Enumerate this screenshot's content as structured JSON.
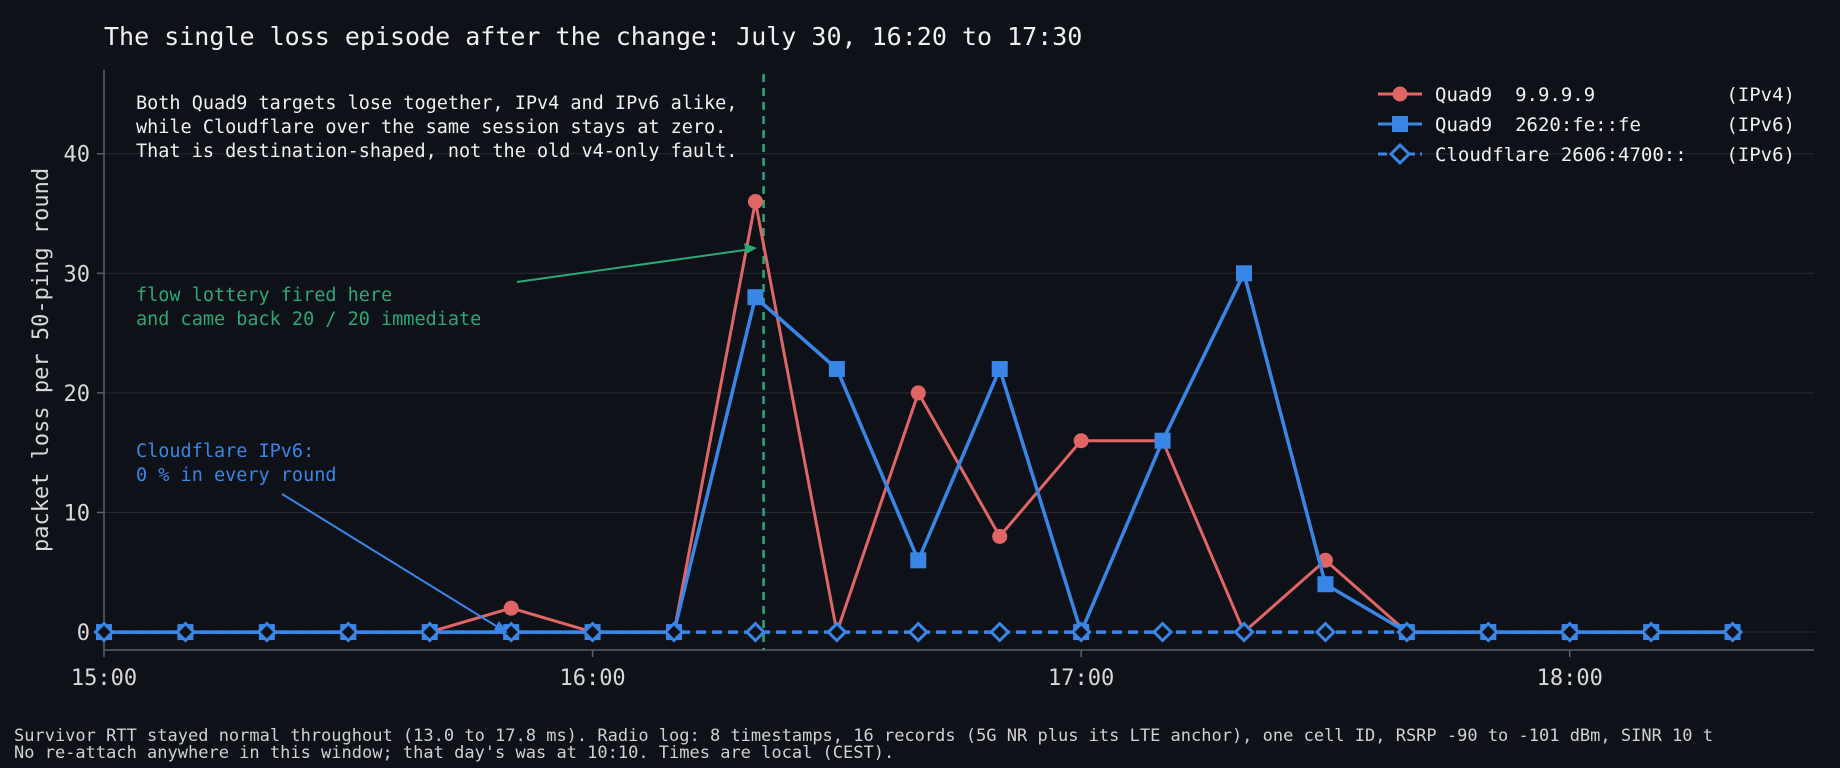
{
  "chart_data": {
    "type": "line",
    "title": "The single loss episode after the change: July 30, 16:20 to 17:30",
    "ylabel": "packet loss per 50-ping round",
    "xlabel": "",
    "x_ticks": [
      "15:00",
      "16:00",
      "17:00",
      "18:00"
    ],
    "x_range": [
      "15:00",
      "18:30"
    ],
    "y_ticks": [
      0,
      10,
      20,
      30,
      40
    ],
    "ylim": [
      -1.5,
      47
    ],
    "grid": "horizontal",
    "legend_position": "top-right",
    "colors": {
      "quad9_v4": "#e06666",
      "quad9_v6": "#3a86e6",
      "cloudflare": "#3a86e6",
      "marker": "#2aa876",
      "background": "#0e1117"
    },
    "series": [
      {
        "name": "Quad9  9.9.9.9",
        "tag": "(IPv4)",
        "marker": "circle",
        "line": "solid",
        "x": [
          "15:00",
          "15:10",
          "15:20",
          "15:30",
          "15:40",
          "15:50",
          "16:00",
          "16:10",
          "16:20",
          "16:30",
          "16:40",
          "16:50",
          "17:00",
          "17:10",
          "17:20",
          "17:30",
          "17:40",
          "17:50",
          "18:00",
          "18:10",
          "18:20"
        ],
        "values": [
          0,
          0,
          0,
          0,
          0,
          2,
          0,
          0,
          36,
          0,
          20,
          8,
          16,
          16,
          0,
          6,
          0,
          0,
          0,
          0,
          0
        ]
      },
      {
        "name": "Quad9  2620:fe::fe",
        "tag": "(IPv6)",
        "marker": "square",
        "line": "solid",
        "x": [
          "15:00",
          "15:10",
          "15:20",
          "15:30",
          "15:40",
          "15:50",
          "16:00",
          "16:10",
          "16:20",
          "16:30",
          "16:40",
          "16:50",
          "17:00",
          "17:10",
          "17:20",
          "17:30",
          "17:40",
          "17:50",
          "18:00",
          "18:10",
          "18:20"
        ],
        "values": [
          0,
          0,
          0,
          0,
          0,
          0,
          0,
          0,
          28,
          22,
          6,
          22,
          0,
          16,
          30,
          4,
          0,
          0,
          0,
          0,
          0
        ]
      },
      {
        "name": "Cloudflare 2606:4700::",
        "tag": "(IPv6)",
        "marker": "diamond",
        "line": "dashed",
        "x": [
          "15:00",
          "15:10",
          "15:20",
          "15:30",
          "15:40",
          "15:50",
          "16:00",
          "16:10",
          "16:20",
          "16:30",
          "16:40",
          "16:50",
          "17:00",
          "17:10",
          "17:20",
          "17:30",
          "17:40",
          "17:50",
          "18:00",
          "18:10",
          "18:20"
        ],
        "values": [
          0,
          0,
          0,
          0,
          0,
          0,
          0,
          0,
          0,
          0,
          0,
          0,
          0,
          0,
          0,
          0,
          0,
          0,
          0,
          0,
          0
        ]
      }
    ],
    "vline_x": "16:21",
    "annotations": {
      "box": [
        "Both Quad9 targets lose together, IPv4 and IPv6 alike,",
        "while Cloudflare over the same session stays at zero.",
        "That is destination-shaped, not the old v4-only fault."
      ],
      "flow": [
        "flow lottery fired here",
        "and came back 20 / 20 immediate"
      ],
      "cloudflare": [
        "Cloudflare IPv6:",
        "0 % in every round"
      ]
    }
  },
  "footer": {
    "line1": "Survivor RTT stayed normal throughout (13.0 to 17.8 ms). Radio log: 8 timestamps, 16 records (5G NR plus its LTE anchor), one cell ID, RSRP -90 to -101 dBm, SINR 10 t",
    "line2": "No re-attach anywhere in this window; that day's was at 10:10. Times are local (CEST)."
  }
}
